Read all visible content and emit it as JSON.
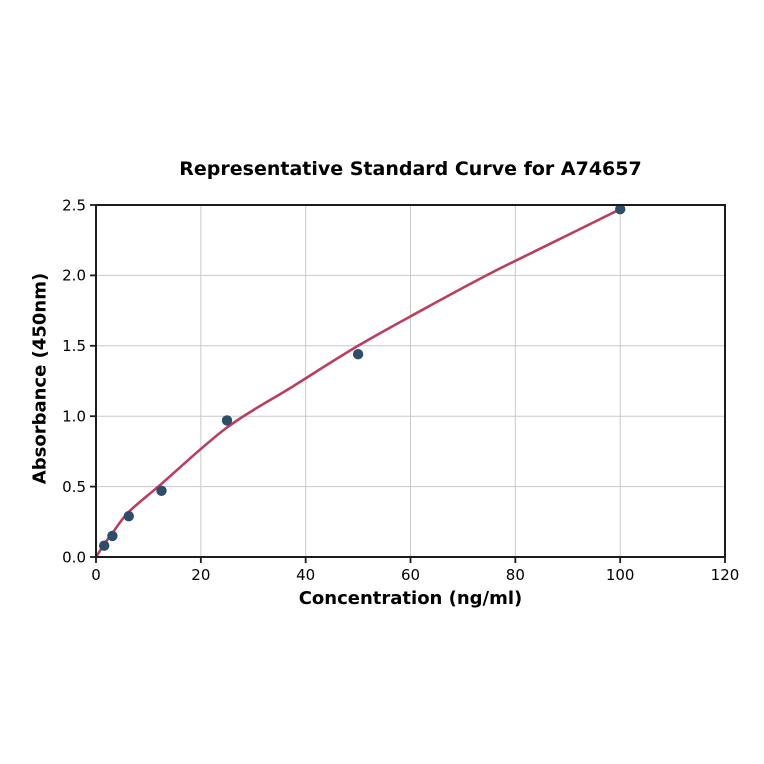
{
  "figure": {
    "background": "#ffffff"
  },
  "chart_data": {
    "type": "scatter",
    "title": "Representative Standard Curve for A74657",
    "xlabel": "Concentration (ng/ml)",
    "ylabel": "Absorbance (450nm)",
    "xlim": [
      0,
      120
    ],
    "ylim": [
      0,
      2.5
    ],
    "grid": true,
    "legend": "none",
    "xticks": {
      "values": [
        0,
        20,
        40,
        60,
        80,
        100,
        120
      ],
      "labels": [
        "0",
        "20",
        "40",
        "60",
        "80",
        "100",
        "120"
      ]
    },
    "yticks": {
      "values": [
        0,
        0.5,
        1.0,
        1.5,
        2.0,
        2.5
      ],
      "labels": [
        "0.0",
        "0.5",
        "1.0",
        "1.5",
        "2.0",
        "2.5"
      ]
    },
    "points": [
      {
        "x": 1.56,
        "y": 0.08
      },
      {
        "x": 3.12,
        "y": 0.15
      },
      {
        "x": 6.25,
        "y": 0.29
      },
      {
        "x": 12.5,
        "y": 0.47
      },
      {
        "x": 25,
        "y": 0.97
      },
      {
        "x": 50,
        "y": 1.44
      },
      {
        "x": 100,
        "y": 2.47
      }
    ],
    "fit_curve": [
      [
        0,
        0
      ],
      [
        1.56,
        0.09
      ],
      [
        3.12,
        0.17
      ],
      [
        6.25,
        0.32
      ],
      [
        12.5,
        0.52
      ],
      [
        25,
        0.92
      ],
      [
        37.5,
        1.21
      ],
      [
        50,
        1.5
      ],
      [
        62.5,
        1.76
      ],
      [
        75,
        2.01
      ],
      [
        87.5,
        2.24
      ],
      [
        100,
        2.47
      ]
    ],
    "colors": {
      "curve": "#ba3e5d",
      "points": "#2e4d6b",
      "grid": "#c9c9c9",
      "axis": "#1c1c1c",
      "text": "#000000"
    }
  }
}
